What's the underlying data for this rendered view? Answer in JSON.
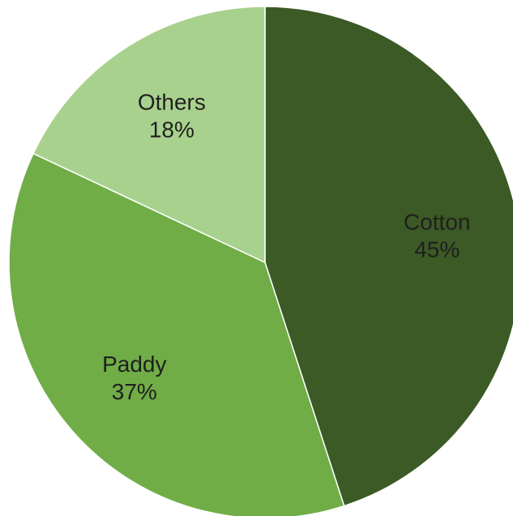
{
  "chart_data": {
    "type": "pie",
    "start_angle_deg": 0,
    "direction": "clockwise",
    "slices": [
      {
        "label": "Cotton",
        "value": 45,
        "display": "45%",
        "color": "#3b5a25"
      },
      {
        "label": "Paddy",
        "value": 37,
        "display": "37%",
        "color": "#70ad47"
      },
      {
        "label": "Others",
        "value": 18,
        "display": "18%",
        "color": "#a9d18e"
      }
    ]
  }
}
